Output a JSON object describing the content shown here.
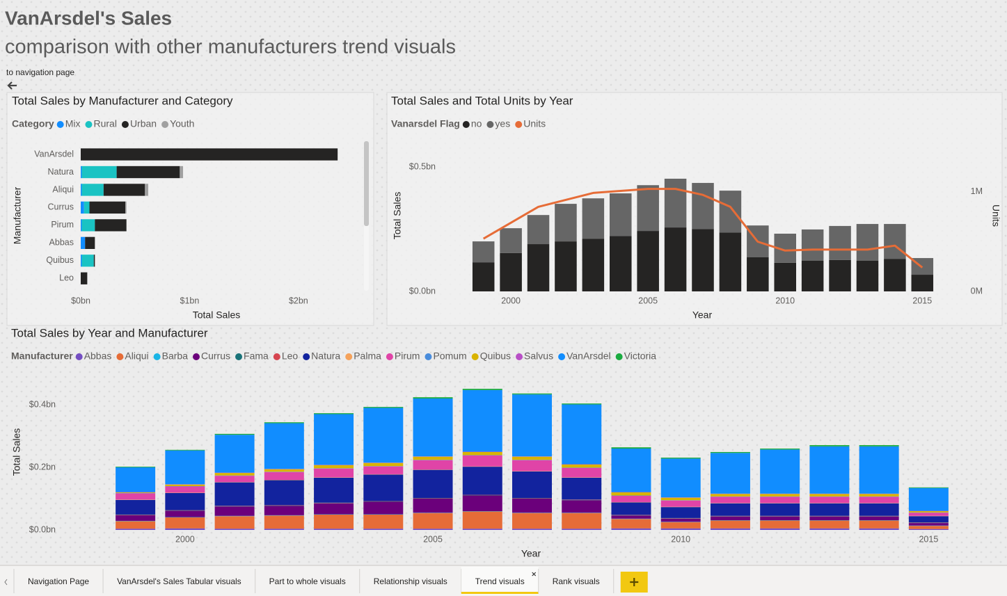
{
  "header": {
    "title": "VanArsdel's Sales",
    "subtitle": "comparison with other manufacturers trend visuals",
    "nav_link": "to navigation page"
  },
  "chart_data": [
    {
      "type": "bar",
      "horizontal": true,
      "stacked": true,
      "grid": false,
      "title": "Total Sales by Manufacturer and Category",
      "legend_title": "Category",
      "x_label": "Total Sales",
      "y_label": "Manufacturer",
      "categories": [
        "VanArsdel",
        "Natura",
        "Aliqui",
        "Currus",
        "Pirum",
        "Abbas",
        "Quibus",
        "Leo"
      ],
      "series": [
        {
          "name": "Mix",
          "color": "#118DFF",
          "values": [
            0,
            0.01,
            0.01,
            0.03,
            0.01,
            0.04,
            0.01,
            0
          ]
        },
        {
          "name": "Rural",
          "color": "#1AC3C3",
          "values": [
            0,
            0.32,
            0.2,
            0.05,
            0.12,
            0,
            0.11,
            0
          ]
        },
        {
          "name": "Urban",
          "color": "#252423",
          "values": [
            2.36,
            0.58,
            0.38,
            0.33,
            0.29,
            0.09,
            0.01,
            0.06
          ]
        },
        {
          "name": "Youth",
          "color": "#A0A0A0",
          "values": [
            0,
            0.03,
            0.03,
            0.01,
            0,
            0,
            0,
            0
          ]
        }
      ],
      "xlim": [
        0,
        2.6
      ],
      "xticks": [
        {
          "value": 0,
          "label": "$0bn"
        },
        {
          "value": 1,
          "label": "$1bn"
        },
        {
          "value": 2,
          "label": "$2bn"
        }
      ]
    },
    {
      "type": "combo",
      "stacked": true,
      "grid": false,
      "title": "Total Sales and Total Units by Year",
      "legend_title": "Vanarsdel Flag",
      "x_label": "Year",
      "y_label": "Total Sales",
      "y2_label": "Units",
      "x": [
        1999,
        2000,
        2001,
        2002,
        2003,
        2004,
        2005,
        2006,
        2007,
        2008,
        2009,
        2010,
        2011,
        2012,
        2013,
        2014,
        2015
      ],
      "series": [
        {
          "name": "no",
          "type": "bar",
          "color": "#252423",
          "values": [
            0.117,
            0.154,
            0.19,
            0.201,
            0.212,
            0.223,
            0.243,
            0.257,
            0.251,
            0.237,
            0.137,
            0.115,
            0.123,
            0.126,
            0.123,
            0.131,
            0.067
          ]
        },
        {
          "name": "yes",
          "type": "bar",
          "color": "#666666",
          "values": [
            0.084,
            0.1,
            0.117,
            0.151,
            0.162,
            0.171,
            0.184,
            0.196,
            0.185,
            0.168,
            0.128,
            0.117,
            0.126,
            0.137,
            0.148,
            0.14,
            0.067
          ]
        },
        {
          "name": "Units",
          "type": "line",
          "axis": "y2",
          "color": "#E66C37",
          "values": [
            0.53,
            0.69,
            0.85,
            0.92,
            0.99,
            1.01,
            1.03,
            1.03,
            0.97,
            0.85,
            0.5,
            0.41,
            0.42,
            0.42,
            0.42,
            0.46,
            0.24
          ]
        }
      ],
      "xlim": [
        1998.5,
        2015.5
      ],
      "xticks": [
        2000,
        2005,
        2010,
        2015
      ],
      "ylim": [
        0,
        0.52
      ],
      "yticks": [
        {
          "value": 0,
          "label": "$0.0bn"
        },
        {
          "value": 0.5,
          "label": "$0.5bn"
        }
      ],
      "y2lim": [
        0,
        1.3
      ],
      "y2ticks": [
        {
          "value": 0,
          "label": "0M"
        },
        {
          "value": 1,
          "label": "1M"
        }
      ]
    },
    {
      "type": "bar",
      "horizontal": false,
      "stacked": true,
      "grid": false,
      "title": "Total Sales by Year and Manufacturer",
      "legend_title": "Manufacturer",
      "x_label": "Year",
      "y_label": "Total Sales",
      "x": [
        1999,
        2000,
        2001,
        2002,
        2003,
        2004,
        2005,
        2006,
        2007,
        2008,
        2009,
        2010,
        2011,
        2012,
        2013,
        2014,
        2015
      ],
      "series": [
        {
          "name": "Abbas",
          "color": "#744EC2",
          "values": [
            0.004,
            0.005,
            0.004,
            0.004,
            0.004,
            0.004,
            0.004,
            0.004,
            0.004,
            0.004,
            0.005,
            0.005,
            0.005,
            0.005,
            0.005,
            0.005,
            0.003
          ]
        },
        {
          "name": "Aliqui",
          "color": "#E66C37",
          "values": [
            0.024,
            0.035,
            0.04,
            0.042,
            0.045,
            0.045,
            0.05,
            0.055,
            0.05,
            0.05,
            0.03,
            0.02,
            0.025,
            0.025,
            0.025,
            0.025,
            0.01
          ]
        },
        {
          "name": "Barba",
          "color": "#1AB5E6",
          "values": [
            0.001,
            0.001,
            0.001,
            0.001,
            0.001,
            0.001,
            0.001,
            0.001,
            0.001,
            0.001,
            0.001,
            0.001,
            0.001,
            0.001,
            0.001,
            0.001,
            0.001
          ]
        },
        {
          "name": "Currus",
          "color": "#6B007B",
          "values": [
            0.018,
            0.02,
            0.03,
            0.03,
            0.035,
            0.04,
            0.045,
            0.05,
            0.045,
            0.04,
            0.01,
            0.01,
            0.012,
            0.012,
            0.012,
            0.012,
            0.008
          ]
        },
        {
          "name": "Fama",
          "color": "#197278",
          "values": [
            0.001,
            0.001,
            0.001,
            0.001,
            0.001,
            0.001,
            0.001,
            0.001,
            0.001,
            0.001,
            0.001,
            0.001,
            0.001,
            0.001,
            0.001,
            0.001,
            0.001
          ]
        },
        {
          "name": "Leo",
          "color": "#D64550",
          "values": [
            0.001,
            0.001,
            0.001,
            0.001,
            0.001,
            0.001,
            0.001,
            0.001,
            0.001,
            0.001,
            0.001,
            0.001,
            0.001,
            0.001,
            0.001,
            0.001,
            0.001
          ]
        },
        {
          "name": "Natura",
          "color": "#12239E",
          "values": [
            0.047,
            0.055,
            0.075,
            0.08,
            0.08,
            0.085,
            0.09,
            0.09,
            0.085,
            0.07,
            0.04,
            0.035,
            0.04,
            0.04,
            0.04,
            0.04,
            0.02
          ]
        },
        {
          "name": "Palma",
          "color": "#F5A25B",
          "values": [
            0.001,
            0.001,
            0.001,
            0.001,
            0.001,
            0.001,
            0.001,
            0.001,
            0.001,
            0.001,
            0.001,
            0.001,
            0.001,
            0.001,
            0.001,
            0.001,
            0.001
          ]
        },
        {
          "name": "Pirum",
          "color": "#E044A7",
          "values": [
            0.02,
            0.02,
            0.02,
            0.025,
            0.028,
            0.025,
            0.03,
            0.035,
            0.035,
            0.03,
            0.02,
            0.02,
            0.02,
            0.02,
            0.02,
            0.02,
            0.01
          ]
        },
        {
          "name": "Pomum",
          "color": "#4A8DDC",
          "values": [
            0.001,
            0.001,
            0.001,
            0.001,
            0.001,
            0.001,
            0.001,
            0.001,
            0.001,
            0.001,
            0.001,
            0.001,
            0.001,
            0.001,
            0.001,
            0.001,
            0.001
          ]
        },
        {
          "name": "Quibus",
          "color": "#D9B300",
          "values": [
            0.002,
            0.005,
            0.008,
            0.008,
            0.01,
            0.01,
            0.01,
            0.01,
            0.01,
            0.01,
            0.01,
            0.008,
            0.008,
            0.008,
            0.008,
            0.008,
            0.004
          ]
        },
        {
          "name": "Salvus",
          "color": "#B84FC6",
          "values": [
            0.001,
            0.001,
            0.001,
            0.001,
            0.001,
            0.001,
            0.001,
            0.001,
            0.001,
            0.001,
            0.001,
            0.001,
            0.001,
            0.001,
            0.001,
            0.001,
            0.001
          ]
        },
        {
          "name": "VanArsdel",
          "color": "#118DFF",
          "values": [
            0.079,
            0.108,
            0.121,
            0.146,
            0.162,
            0.175,
            0.185,
            0.197,
            0.198,
            0.191,
            0.139,
            0.124,
            0.13,
            0.141,
            0.151,
            0.151,
            0.073
          ]
        },
        {
          "name": "Victoria",
          "color": "#1AAB40",
          "values": [
            0.002,
            0.002,
            0.003,
            0.003,
            0.003,
            0.003,
            0.004,
            0.004,
            0.003,
            0.003,
            0.004,
            0.003,
            0.003,
            0.003,
            0.004,
            0.004,
            0.002
          ]
        }
      ],
      "xlim": [
        1998.5,
        2015.5
      ],
      "xticks": [
        2000,
        2005,
        2010,
        2015
      ],
      "ylim": [
        0,
        0.48
      ],
      "yticks": [
        {
          "value": 0,
          "label": "$0.0bn"
        },
        {
          "value": 0.2,
          "label": "$0.2bn"
        },
        {
          "value": 0.4,
          "label": "$0.4bn"
        }
      ]
    }
  ],
  "tabs": [
    {
      "label": "Navigation Page"
    },
    {
      "label": "VanArsdel's Sales Tabular visuals"
    },
    {
      "label": "Part to whole visuals"
    },
    {
      "label": "Relationship visuals"
    },
    {
      "label": "Trend visuals",
      "active": true
    },
    {
      "label": "Rank visuals"
    }
  ]
}
